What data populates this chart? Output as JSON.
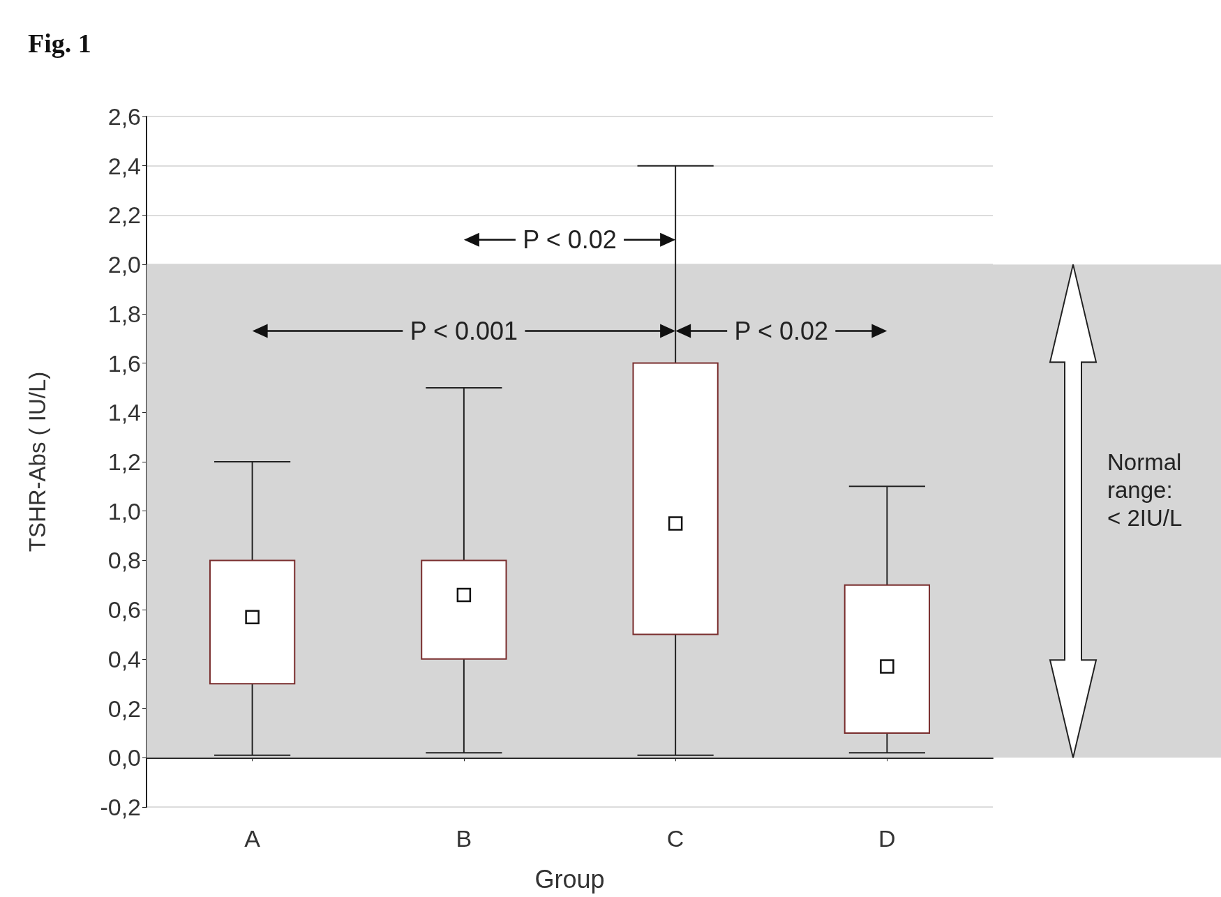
{
  "chart_data": {
    "type": "box",
    "title": "Fig. 1",
    "xlabel": "Group",
    "ylabel": "TSHR-Abs ( IU/L)",
    "categories": [
      "A",
      "B",
      "C",
      "D"
    ],
    "boxes": [
      {
        "low": 0.01,
        "q1": 0.3,
        "median": 0.57,
        "q3": 0.8,
        "high": 1.2
      },
      {
        "low": 0.02,
        "q1": 0.4,
        "median": 0.66,
        "q3": 0.8,
        "high": 1.5
      },
      {
        "low": 0.01,
        "q1": 0.5,
        "median": 0.95,
        "q3": 1.6,
        "high": 2.4
      },
      {
        "low": 0.02,
        "q1": 0.1,
        "median": 0.37,
        "q3": 0.7,
        "high": 1.1
      }
    ],
    "color": "#7a2e2e",
    "ylim": [
      -0.2,
      2.6
    ],
    "yticks": [
      {
        "value": -0.2,
        "label": "-0,2"
      },
      {
        "value": 0,
        "label": "0,0"
      },
      {
        "value": 0.2,
        "label": "0,2"
      },
      {
        "value": 0.4,
        "label": "0,4"
      },
      {
        "value": 0.6,
        "label": "0,6"
      },
      {
        "value": 0.8,
        "label": "0,8"
      },
      {
        "value": 1.0,
        "label": "1,0"
      },
      {
        "value": 1.2,
        "label": "1,2"
      },
      {
        "value": 1.4,
        "label": "1,4"
      },
      {
        "value": 1.6,
        "label": "1,6"
      },
      {
        "value": 1.8,
        "label": "1,8"
      },
      {
        "value": 2.0,
        "label": "2,0"
      },
      {
        "value": 2.2,
        "label": "2,2"
      },
      {
        "value": 2.4,
        "label": "2,4"
      },
      {
        "value": 2.6,
        "label": "2,6"
      }
    ],
    "grid": "y",
    "bands": [
      {
        "axis": "y",
        "from": 0,
        "to": 2.0,
        "color": "#d6d6d6"
      }
    ],
    "annotations": [
      "P < 0.02",
      "P < 0.001",
      "P < 0.02",
      "Normal range: < 2IU/L"
    ]
  }
}
